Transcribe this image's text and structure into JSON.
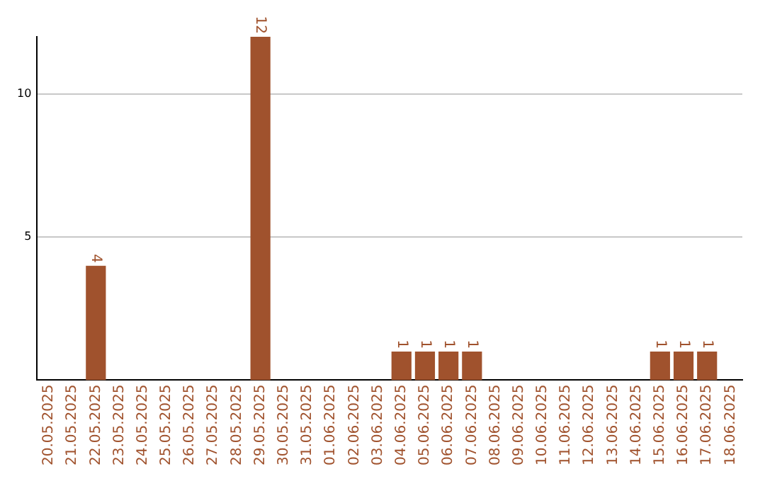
{
  "chart_data": {
    "type": "bar",
    "categories": [
      "20.05.2025",
      "21.05.2025",
      "22.05.2025",
      "23.05.2025",
      "24.05.2025",
      "25.05.2025",
      "26.05.2025",
      "27.05.2025",
      "28.05.2025",
      "29.05.2025",
      "30.05.2025",
      "31.05.2025",
      "01.06.2025",
      "02.06.2025",
      "03.06.2025",
      "04.06.2025",
      "05.06.2025",
      "06.06.2025",
      "07.06.2025",
      "08.06.2025",
      "09.06.2025",
      "10.06.2025",
      "11.06.2025",
      "12.06.2025",
      "13.06.2025",
      "14.06.2025",
      "15.06.2025",
      "16.06.2025",
      "17.06.2025",
      "18.06.2025"
    ],
    "values": [
      0,
      0,
      4,
      0,
      0,
      0,
      0,
      0,
      0,
      12,
      0,
      0,
      0,
      0,
      0,
      1,
      1,
      1,
      1,
      0,
      0,
      0,
      0,
      0,
      0,
      0,
      1,
      1,
      1,
      0
    ],
    "value_labels": [
      null,
      null,
      "4",
      null,
      null,
      null,
      null,
      null,
      null,
      "12",
      null,
      null,
      null,
      null,
      null,
      "1",
      "1",
      "1",
      "1",
      null,
      null,
      null,
      null,
      null,
      null,
      null,
      "1",
      "1",
      "1",
      null
    ],
    "color": "#a0522d",
    "ylim": [
      0,
      12
    ],
    "yticks": [
      5,
      10
    ],
    "grid": "y",
    "legend": false
  }
}
